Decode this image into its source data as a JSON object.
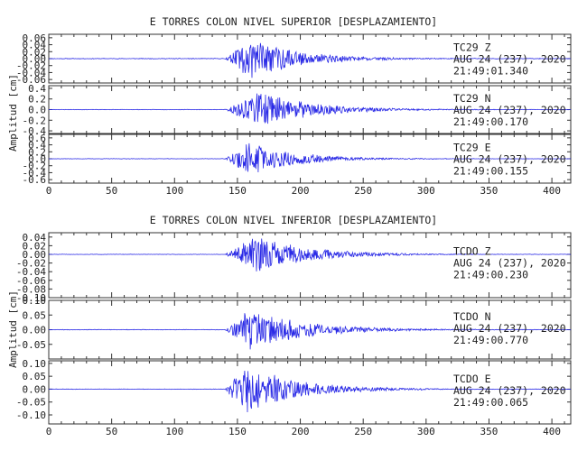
{
  "chart_data": [
    {
      "type": "line",
      "title": "E TORRES COLON NIVEL SUPERIOR [DESPLAZAMIENTO]",
      "ylabel": "Amplitud [cm]",
      "xlim": [
        0,
        415
      ],
      "xticks": [
        "0",
        "50",
        "100",
        "150",
        "200",
        "250",
        "300",
        "350",
        "400"
      ],
      "line_color": "#2a2ae6",
      "panels": [
        {
          "channel": "Z",
          "station_label": "TC29   Z",
          "date_label": "AUG 24 (237), 2020",
          "time_label": "21:49:01.340",
          "ylim": [
            -0.07,
            0.07
          ],
          "yticks": [
            "0.06",
            "0.04",
            "0.02",
            "0.00",
            "-0.02",
            "-0.04",
            "-0.06"
          ],
          "series": {
            "onset": 140,
            "peak_time": 160,
            "peak_amp": 0.06,
            "decay": 38,
            "freq": 0.55,
            "noise": 0.0008,
            "seed": 11
          }
        },
        {
          "channel": "N",
          "station_label": "TC29   N",
          "date_label": "AUG 24 (237), 2020",
          "time_label": "21:49:00.170",
          "ylim": [
            -0.45,
            0.45
          ],
          "yticks": [
            "0.4",
            "0.2",
            "0.0",
            "-0.2",
            "-0.4"
          ],
          "series": {
            "onset": 140,
            "peak_time": 168,
            "peak_amp": 0.35,
            "decay": 40,
            "freq": 0.5,
            "noise": 0.004,
            "seed": 23
          }
        },
        {
          "channel": "E",
          "station_label": "TC29   E",
          "date_label": "AUG 24 (237), 2020",
          "time_label": "21:49:00.155",
          "ylim": [
            -0.7,
            0.7
          ],
          "yticks": [
            "0.6",
            "0.4",
            "0.2",
            "0.0",
            "-0.2",
            "-0.4",
            "-0.6"
          ],
          "series": {
            "onset": 140,
            "peak_time": 160,
            "peak_amp": 0.5,
            "decay": 36,
            "freq": 0.52,
            "noise": 0.005,
            "seed": 37
          }
        }
      ]
    },
    {
      "type": "line",
      "title": "E TORRES COLON NIVEL INFERIOR [DESPLAZAMIENTO]",
      "ylabel": "Amplitud [cm]",
      "xlim": [
        0,
        415
      ],
      "xticks": [
        "0",
        "50",
        "100",
        "150",
        "200",
        "250",
        "300",
        "350",
        "400"
      ],
      "line_color": "#2a2ae6",
      "panels": [
        {
          "channel": "Z",
          "station_label": "TCDO   Z",
          "date_label": "AUG 24 (237), 2020",
          "time_label": "21:49:00.230",
          "ylim": [
            -0.1,
            0.05
          ],
          "yticks": [
            "0.04",
            "0.02",
            "0.00",
            "-0.02",
            "-0.04",
            "-0.06",
            "-0.08",
            "-0.10"
          ],
          "series": {
            "onset": 140,
            "peak_time": 165,
            "peak_amp": 0.045,
            "decay": 40,
            "freq": 0.5,
            "noise": 0.0004,
            "seed": 51
          }
        },
        {
          "channel": "N",
          "station_label": "TCDO   N",
          "date_label": "AUG 24 (237), 2020",
          "time_label": "21:49:00.770",
          "ylim": [
            -0.1,
            0.1
          ],
          "yticks": [
            "0.10",
            "0.05",
            "0.00",
            "-0.05"
          ],
          "series": {
            "onset": 140,
            "peak_time": 160,
            "peak_amp": 0.075,
            "decay": 42,
            "freq": 0.5,
            "noise": 0.0008,
            "seed": 67
          }
        },
        {
          "channel": "E",
          "station_label": "TCDO   E",
          "date_label": "AUG 24 (237), 2020",
          "time_label": "21:49:00.065",
          "ylim": [
            -0.135,
            0.11
          ],
          "yticks": [
            "0.10",
            "0.05",
            "0.00",
            "-0.05",
            "-0.10"
          ],
          "series": {
            "onset": 140,
            "peak_time": 157,
            "peak_amp": 0.1,
            "decay": 40,
            "freq": 0.5,
            "noise": 0.0008,
            "seed": 83
          }
        }
      ]
    }
  ]
}
